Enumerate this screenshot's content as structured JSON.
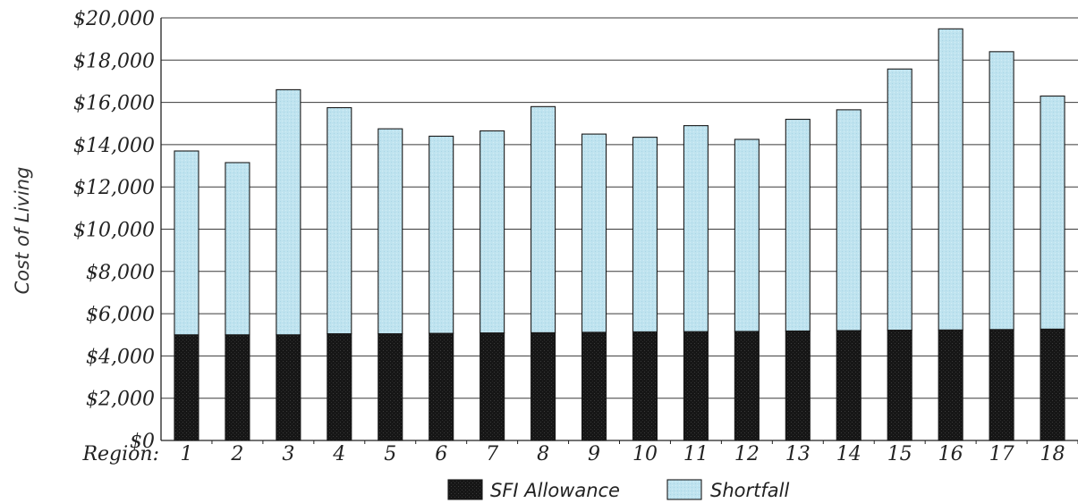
{
  "chart_data": {
    "type": "bar",
    "stacked": true,
    "xlabel": "Region:",
    "ylabel": "Cost of Living",
    "ylim": [
      0,
      20000
    ],
    "y_ticks": [
      0,
      2000,
      4000,
      6000,
      8000,
      10000,
      12000,
      14000,
      16000,
      18000,
      20000
    ],
    "y_tick_labels": [
      "$0",
      "$2,000",
      "$4,000",
      "$6,000",
      "$8,000",
      "$10,000",
      "$12,000",
      "$14,000",
      "$16,000",
      "$18,000",
      "$20,000"
    ],
    "categories": [
      "1",
      "2",
      "3",
      "4",
      "5",
      "6",
      "7",
      "8",
      "9",
      "10",
      "11",
      "12",
      "13",
      "14",
      "15",
      "16",
      "17",
      "18"
    ],
    "grid": true,
    "legend_position": "bottom",
    "series": [
      {
        "name": "SFI Allowance",
        "color": "#161616",
        "values": [
          5000,
          5000,
          5000,
          5050,
          5050,
          5070,
          5090,
          5100,
          5120,
          5140,
          5150,
          5160,
          5180,
          5200,
          5220,
          5230,
          5250,
          5270
        ]
      },
      {
        "name": "Shortfall",
        "color": "#bfe3ef",
        "values": [
          8700,
          8150,
          11600,
          10700,
          9700,
          9330,
          9560,
          10700,
          9380,
          9210,
          9750,
          9090,
          10020,
          10450,
          12360,
          14250,
          13150,
          11030
        ]
      }
    ]
  }
}
